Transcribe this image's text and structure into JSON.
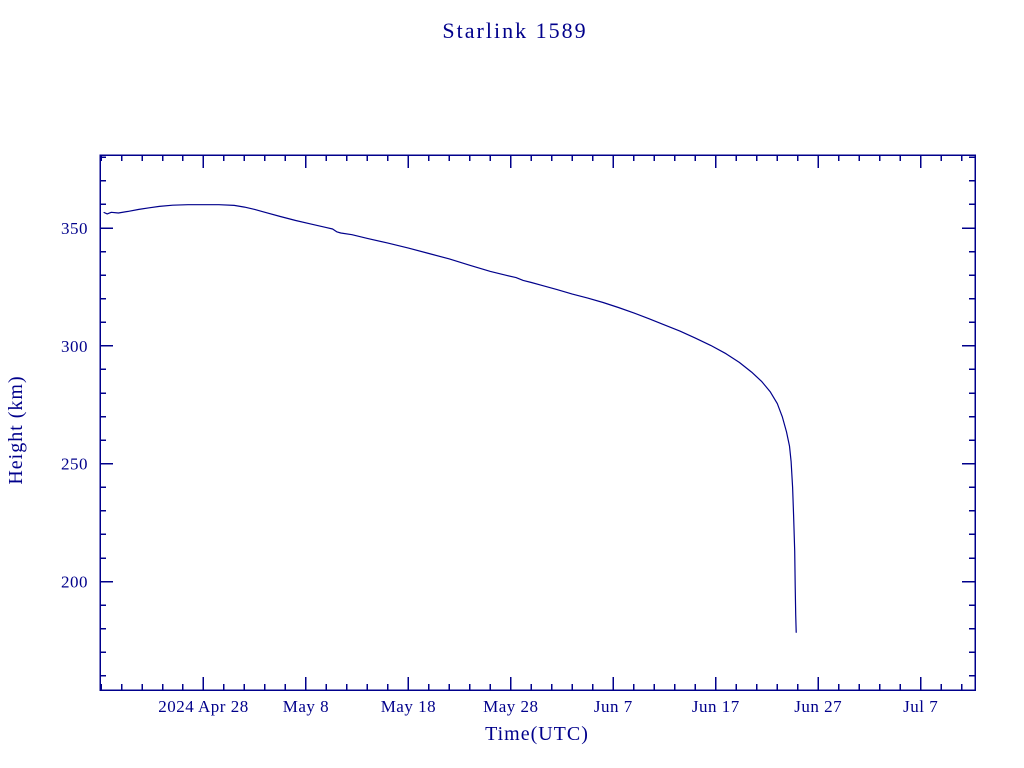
{
  "chart_data": {
    "type": "line",
    "title": "Starlink 1589",
    "xlabel": "Time(UTC)",
    "ylabel": "Height (km)",
    "line_color": "#00008b",
    "x_unit": "days since 2024 Apr 28",
    "xlim": [
      -10.1,
      75.3
    ],
    "ylim": [
      154,
      381
    ],
    "grid": false,
    "legend": "none",
    "x_ticks": [
      {
        "value": 0,
        "label": "2024 Apr 28"
      },
      {
        "value": 10,
        "label": "May 8"
      },
      {
        "value": 20,
        "label": "May 18"
      },
      {
        "value": 30,
        "label": "May 28"
      },
      {
        "value": 40,
        "label": "Jun 7"
      },
      {
        "value": 50,
        "label": "Jun 17"
      },
      {
        "value": 60,
        "label": "Jun 27"
      },
      {
        "value": 70,
        "label": "Jul 7"
      }
    ],
    "x_minor_step": 2,
    "y_ticks": [
      200,
      250,
      300,
      350
    ],
    "y_minor_step": 10,
    "points": [
      [
        -9.7,
        356.6
      ],
      [
        -9.4,
        356.0
      ],
      [
        -9.0,
        356.7
      ],
      [
        -8.3,
        356.4
      ],
      [
        -7.3,
        357.1
      ],
      [
        -6.3,
        357.9
      ],
      [
        -5.3,
        358.6
      ],
      [
        -4.3,
        359.2
      ],
      [
        -3.0,
        359.7
      ],
      [
        -1.5,
        359.9
      ],
      [
        0.0,
        359.9
      ],
      [
        1.5,
        359.9
      ],
      [
        3.0,
        359.6
      ],
      [
        4.0,
        358.9
      ],
      [
        5.0,
        357.9
      ],
      [
        6.0,
        356.7
      ],
      [
        7.5,
        354.9
      ],
      [
        9.0,
        353.2
      ],
      [
        10.5,
        351.7
      ],
      [
        12.0,
        350.2
      ],
      [
        12.6,
        349.6
      ],
      [
        13.0,
        348.4
      ],
      [
        13.4,
        347.9
      ],
      [
        14.5,
        347.2
      ],
      [
        16.0,
        345.6
      ],
      [
        18.0,
        343.6
      ],
      [
        20.0,
        341.5
      ],
      [
        22.0,
        339.2
      ],
      [
        24.0,
        336.9
      ],
      [
        26.0,
        334.2
      ],
      [
        28.0,
        331.6
      ],
      [
        29.5,
        330.0
      ],
      [
        30.5,
        329.0
      ],
      [
        31.2,
        327.8
      ],
      [
        32.0,
        326.9
      ],
      [
        33.0,
        325.7
      ],
      [
        34.5,
        323.9
      ],
      [
        36.0,
        322.0
      ],
      [
        37.5,
        320.3
      ],
      [
        39.0,
        318.4
      ],
      [
        40.5,
        316.3
      ],
      [
        42.0,
        314.0
      ],
      [
        43.5,
        311.5
      ],
      [
        45.0,
        308.9
      ],
      [
        46.5,
        306.3
      ],
      [
        48.0,
        303.3
      ],
      [
        49.5,
        300.2
      ],
      [
        51.0,
        296.7
      ],
      [
        52.3,
        293.0
      ],
      [
        53.5,
        288.9
      ],
      [
        54.5,
        284.8
      ],
      [
        55.3,
        280.6
      ],
      [
        56.0,
        275.5
      ],
      [
        56.5,
        269.8
      ],
      [
        56.9,
        263.5
      ],
      [
        57.1,
        259.5
      ],
      [
        57.2,
        257.5
      ],
      [
        57.35,
        251.0
      ],
      [
        57.5,
        240.0
      ],
      [
        57.6,
        228.0
      ],
      [
        57.7,
        213.0
      ],
      [
        57.75,
        198.0
      ],
      [
        57.8,
        186.0
      ],
      [
        57.85,
        178.5
      ]
    ]
  }
}
